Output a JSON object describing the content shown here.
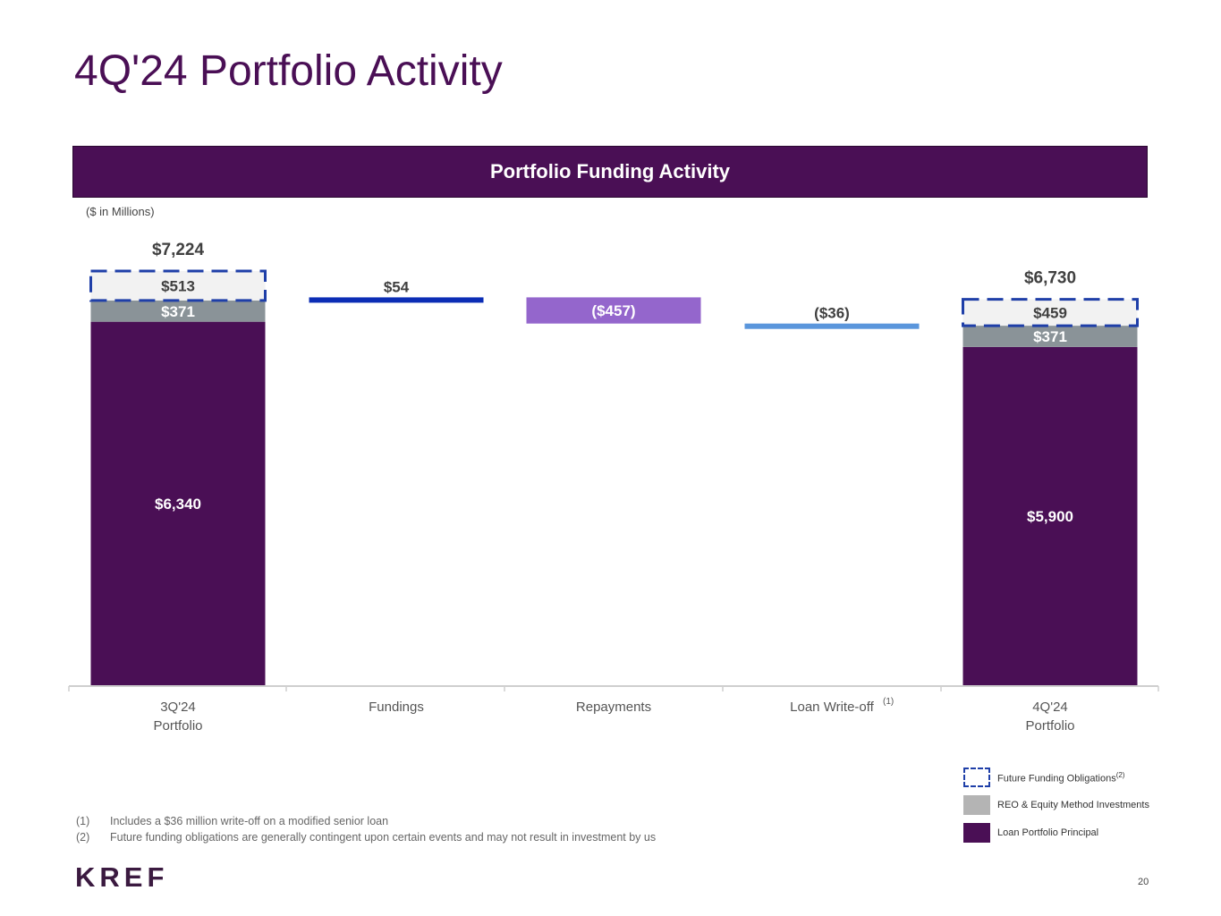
{
  "title": "4Q'24 Portfolio Activity",
  "banner": "Portfolio Funding Activity",
  "units_note": "($ in Millions)",
  "colors": {
    "loan_principal": "#4A0F55",
    "reo": "#8A9398",
    "future_funding_fill": "#F2F2F2",
    "future_funding_border": "#1F3FA8",
    "fundings": "#0B2DB5",
    "repayments": "#9466CC",
    "writeoff": "#5A96DC"
  },
  "chart_data": {
    "type": "bar",
    "subtype": "waterfall",
    "title": "Portfolio Funding Activity",
    "ylabel": "($ in Millions)",
    "ylim": [
      0,
      7224
    ],
    "categories": [
      "3Q'24\nPortfolio",
      "Fundings",
      "Repayments",
      "Loan Write-off",
      "4Q'24\nPortfolio"
    ],
    "category_superscripts": [
      "",
      "",
      "",
      "(1)",
      ""
    ],
    "totals": [
      {
        "category_index": 0,
        "total": 7224,
        "total_label": "$7,224",
        "stack": [
          {
            "series": "Loan Portfolio Principal",
            "value": 6340,
            "label": "$6,340"
          },
          {
            "series": "REO & Equity Method Investments",
            "value": 371,
            "label": "$371"
          },
          {
            "series": "Future Funding Obligations",
            "value": 513,
            "label": "$513"
          }
        ]
      },
      {
        "category_index": 4,
        "total": 6730,
        "total_label": "$6,730",
        "stack": [
          {
            "series": "Loan Portfolio Principal",
            "value": 5900,
            "label": "$5,900"
          },
          {
            "series": "REO & Equity Method Investments",
            "value": 371,
            "label": "$371"
          },
          {
            "series": "Future Funding Obligations",
            "value": 459,
            "label": "$459"
          }
        ]
      }
    ],
    "changes": [
      {
        "category_index": 1,
        "from": 6711,
        "to": 6765,
        "value": 54,
        "label": "$54",
        "color_key": "fundings",
        "label_position": "above"
      },
      {
        "category_index": 2,
        "from": 6765,
        "to": 6308,
        "value": -457,
        "label": "($457)",
        "color_key": "repayments",
        "label_position": "inside"
      },
      {
        "category_index": 3,
        "from": 6308,
        "to": 6272,
        "value": -36,
        "label": "($36)",
        "color_key": "writeoff",
        "label_position": "above"
      }
    ],
    "legend": [
      {
        "label": "Future Funding Obligations",
        "sup": "(2)",
        "style": "dashed"
      },
      {
        "label": "REO & Equity Method Investments",
        "sup": "",
        "style": "reo"
      },
      {
        "label": "Loan Portfolio Principal",
        "sup": "",
        "style": "loan"
      }
    ]
  },
  "footnotes": [
    {
      "num": "(1)",
      "text": "Includes a $36 million write-off on a modified senior loan"
    },
    {
      "num": "(2)",
      "text": "Future funding obligations are generally contingent upon certain events and may not result in investment by us"
    }
  ],
  "logo": "KREF",
  "page_number": "20"
}
